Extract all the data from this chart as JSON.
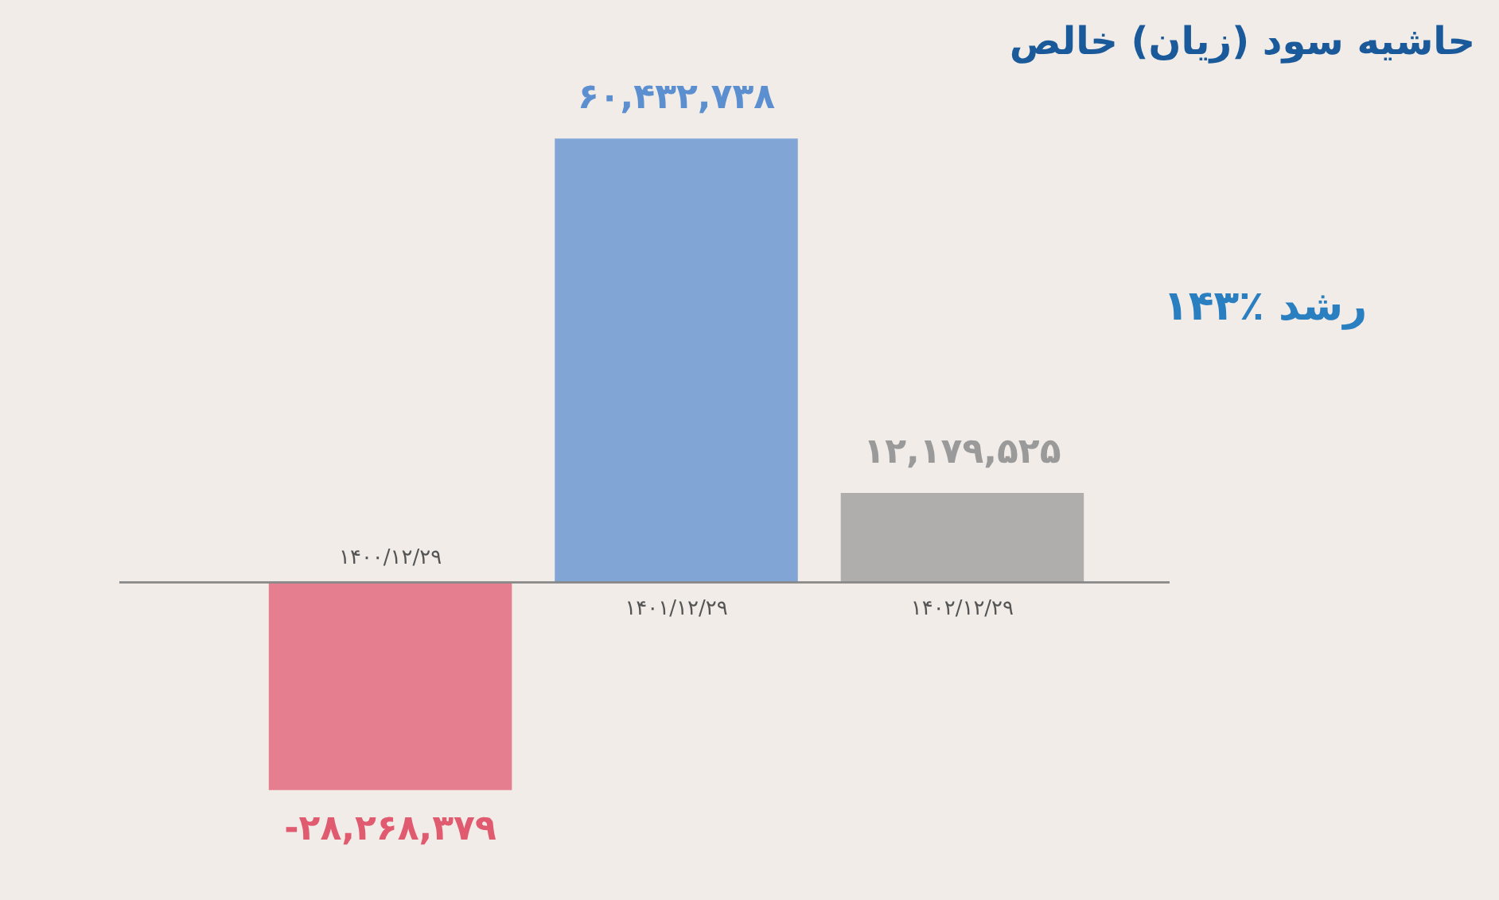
{
  "chart_data": {
    "type": "bar",
    "title": "حاشیه سود (زیان) خالص",
    "categories": [
      "۱۴۰۰/۱۲/۲۹",
      "۱۴۰۱/۱۲/۲۹",
      "۱۴۰۲/۱۲/۲۹"
    ],
    "values": [
      -28268379,
      60432738,
      12179525
    ],
    "colors": [
      "#e05a70",
      "#5b8fd0",
      "#9a9a9a"
    ],
    "value_labels": [
      "-۲۸,۲۶۸,۳۷۹",
      "۶۰,۴۳۲,۷۳۸",
      "۱۲,۱۷۹,۵۲۵"
    ],
    "annotations": [
      "۱۴۳٪ رشد"
    ],
    "grid": false
  }
}
